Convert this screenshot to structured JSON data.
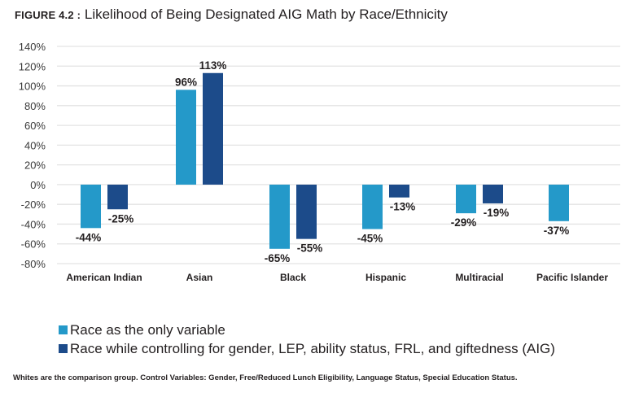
{
  "figure": {
    "label": "FIGURE 4.2 :",
    "title": "Likelihood of Being Designated AIG Math by Race/Ethnicity"
  },
  "colors": {
    "series1": "#2499c9",
    "series2": "#1c4b8a",
    "grid": "#e3e3e3",
    "text": "#231f20"
  },
  "chart_data": {
    "type": "bar",
    "title": "Likelihood of Being Designated AIG Math by Race/Ethnicity",
    "xlabel": "",
    "ylabel": "",
    "ylim": [
      -80,
      140
    ],
    "yticks": [
      140,
      120,
      100,
      80,
      60,
      40,
      20,
      0,
      -20,
      -40,
      -60,
      -80
    ],
    "ytick_labels": [
      "140%",
      "120%",
      "100%",
      "80%",
      "60%",
      "40%",
      "20%",
      "0%",
      "-20%",
      "-40%",
      "-60%",
      "-80%"
    ],
    "grid": true,
    "legend_position": "bottom-left",
    "categories": [
      "American Indian",
      "Asian",
      "Black",
      "Hispanic",
      "Multiracial",
      "Pacific Islander"
    ],
    "series": [
      {
        "name": "Race as the only variable",
        "values": [
          -44,
          96,
          -65,
          -45,
          -29,
          -37
        ],
        "labels": [
          "-44%",
          "96%",
          "-65%",
          "-45%",
          "-29%",
          "-37%"
        ]
      },
      {
        "name": "Race while controlling for gender, LEP, ability status, FRL, and giftedness (AIG)",
        "values": [
          -25,
          113,
          -55,
          -13,
          -19,
          null
        ],
        "labels": [
          "-25%",
          "113%",
          "-55%",
          "-13%",
          "-19%",
          null
        ]
      }
    ]
  },
  "legend": {
    "items": [
      "Race as the only variable",
      "Race while controlling for gender, LEP, ability status, FRL, and giftedness (AIG)"
    ]
  },
  "note": "Whites are the comparison group. Control Variables: Gender, Free/Reduced Lunch Eligibility, Language Status, Special Education Status."
}
